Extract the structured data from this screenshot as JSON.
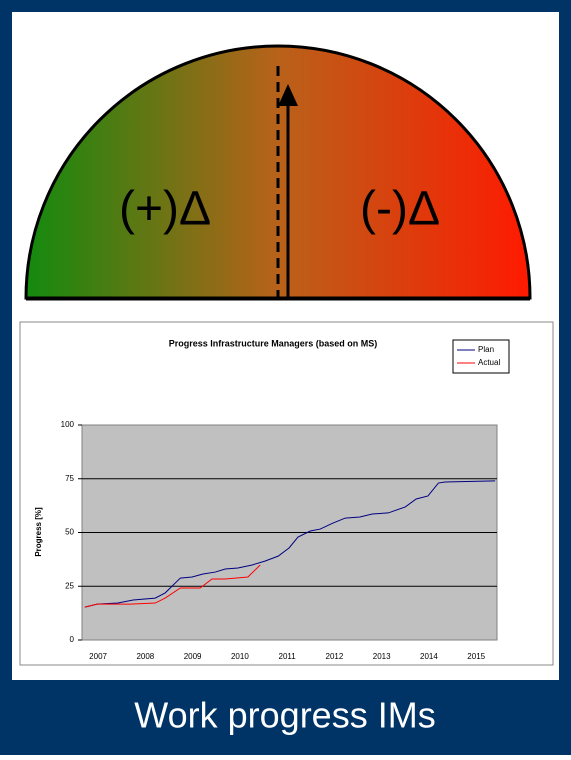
{
  "gauge": {
    "left_label": "(+)Δ",
    "right_label": "(-)Δ"
  },
  "chart_data": {
    "type": "line",
    "title": "Progress Infrastructure Managers (based on MS)",
    "y_label": "Progress [%]",
    "xlim": [
      2006.66,
      2015.44
    ],
    "xticks": [
      2007,
      2008,
      2009,
      2010,
      2011,
      2012,
      2013,
      2014,
      2015
    ],
    "ylim": [
      0,
      100
    ],
    "yticks": [
      0,
      25,
      50,
      75,
      100
    ],
    "grid": true,
    "legend": "top-right",
    "series": [
      {
        "name": "Plan",
        "color": "#000080",
        "x": [
          2006.72,
          2006.98,
          2007.42,
          2007.74,
          2008.21,
          2008.42,
          2008.74,
          2008.99,
          2009.22,
          2009.48,
          2009.69,
          2009.96,
          2010.26,
          2010.53,
          2010.81,
          2011.04,
          2011.23,
          2011.49,
          2011.7,
          2011.97,
          2012.23,
          2012.54,
          2012.8,
          2013.14,
          2013.5,
          2013.73,
          2013.98,
          2014.2,
          2014.34,
          2015.4
        ],
        "values": [
          15.3,
          16.7,
          17.2,
          18.6,
          19.5,
          21.9,
          28.8,
          29.3,
          30.7,
          31.6,
          33,
          33.5,
          34.9,
          36.7,
          39,
          42.8,
          47.9,
          50.7,
          51.6,
          54.4,
          56.7,
          57.2,
          58.6,
          59.1,
          61.9,
          65.6,
          67,
          73,
          73.5,
          74
        ]
      },
      {
        "name": "Actual",
        "color": "#ff0000",
        "x": [
          2006.72,
          2006.98,
          2007.68,
          2008.21,
          2008.42,
          2008.74,
          2009.16,
          2009.41,
          2009.69,
          2010.17,
          2010.43
        ],
        "values": [
          15.3,
          16.7,
          16.7,
          17.2,
          19.5,
          24.2,
          24.2,
          28.4,
          28.4,
          29.3,
          34.9
        ]
      }
    ]
  },
  "footer": "Work progress IMs"
}
